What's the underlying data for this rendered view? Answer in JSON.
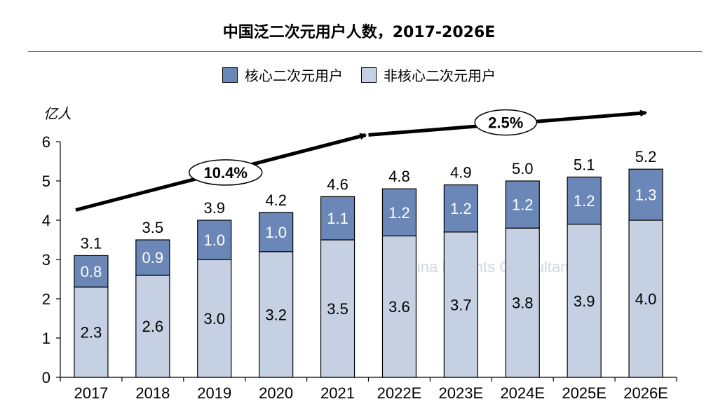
{
  "title": "中国泛二次元用户人数，2017-2026E",
  "unit": "亿人",
  "colors": {
    "core": "#6a87b8",
    "noncore": "#c6d0e3"
  },
  "chart_data": {
    "type": "bar",
    "stacked": true,
    "categories": [
      "2017",
      "2018",
      "2019",
      "2020",
      "2021",
      "2022E",
      "2023E",
      "2024E",
      "2025E",
      "2026E"
    ],
    "series": [
      {
        "name": "非核心二次元用户",
        "values": [
          2.3,
          2.6,
          3.0,
          3.2,
          3.5,
          3.6,
          3.7,
          3.8,
          3.9,
          4.0
        ]
      },
      {
        "name": "核心二次元用户",
        "values": [
          0.8,
          0.9,
          1.0,
          1.0,
          1.1,
          1.2,
          1.2,
          1.2,
          1.2,
          1.3
        ]
      }
    ],
    "totals": [
      3.1,
      3.5,
      3.9,
      4.2,
      4.6,
      4.8,
      4.9,
      5.0,
      5.1,
      5.2
    ],
    "legend": [
      "核心二次元用户",
      "非核心二次元用户"
    ],
    "legend_position": "top",
    "yticks": [
      0,
      1,
      2,
      3,
      4,
      5,
      6
    ],
    "ylim": [
      0,
      6
    ],
    "ylabel": "亿人",
    "annotations": [
      {
        "label": "10.4%",
        "from": "2017",
        "to": "2021"
      },
      {
        "label": "2.5%",
        "from": "2021",
        "to": "2026E"
      }
    ],
    "watermark": "China Insights Consultancy"
  }
}
